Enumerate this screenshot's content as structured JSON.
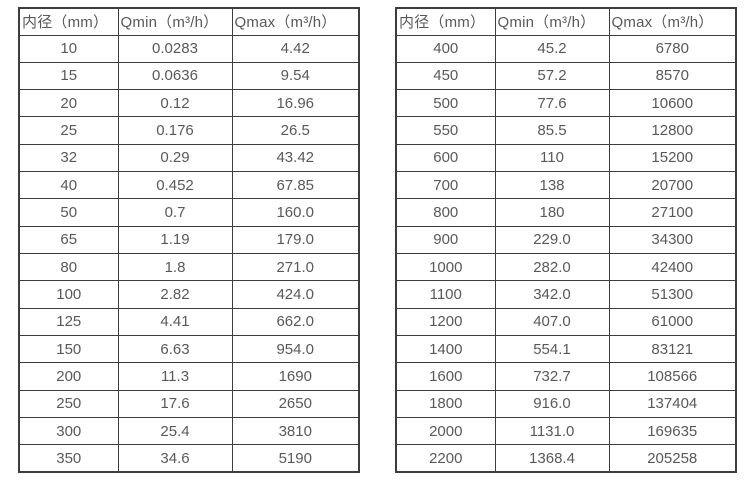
{
  "colors": {
    "background": "#ffffff",
    "border": "#3d3d3d",
    "text": "#595959"
  },
  "tables": [
    {
      "name": "flow-table-small-diameters",
      "headers": [
        "内径（mm）",
        "Qmin（m³/h）",
        "Qmax（m³/h）"
      ],
      "rows": [
        [
          "10",
          "0.0283",
          "4.42"
        ],
        [
          "15",
          "0.0636",
          "9.54"
        ],
        [
          "20",
          "0.12",
          "16.96"
        ],
        [
          "25",
          "0.176",
          "26.5"
        ],
        [
          "32",
          "0.29",
          "43.42"
        ],
        [
          "40",
          "0.452",
          "67.85"
        ],
        [
          "50",
          "0.7",
          "160.0"
        ],
        [
          "65",
          "1.19",
          "179.0"
        ],
        [
          "80",
          "1.8",
          "271.0"
        ],
        [
          "100",
          "2.82",
          "424.0"
        ],
        [
          "125",
          "4.41",
          "662.0"
        ],
        [
          "150",
          "6.63",
          "954.0"
        ],
        [
          "200",
          "11.3",
          "1690"
        ],
        [
          "250",
          "17.6",
          "2650"
        ],
        [
          "300",
          "25.4",
          "3810"
        ],
        [
          "350",
          "34.6",
          "5190"
        ]
      ]
    },
    {
      "name": "flow-table-large-diameters",
      "headers": [
        "内径（mm）",
        "Qmin（m³/h）",
        "Qmax（m³/h）"
      ],
      "rows": [
        [
          "400",
          "45.2",
          "6780"
        ],
        [
          "450",
          "57.2",
          "8570"
        ],
        [
          "500",
          "77.6",
          "10600"
        ],
        [
          "550",
          "85.5",
          "12800"
        ],
        [
          "600",
          "110",
          "15200"
        ],
        [
          "700",
          "138",
          "20700"
        ],
        [
          "800",
          "180",
          "27100"
        ],
        [
          "900",
          "229.0",
          "34300"
        ],
        [
          "1000",
          "282.0",
          "42400"
        ],
        [
          "1100",
          "342.0",
          "51300"
        ],
        [
          "1200",
          "407.0",
          "61000"
        ],
        [
          "1400",
          "554.1",
          "83121"
        ],
        [
          "1600",
          "732.7",
          "108566"
        ],
        [
          "1800",
          "916.0",
          "137404"
        ],
        [
          "2000",
          "1131.0",
          "169635"
        ],
        [
          "2200",
          "1368.4",
          "205258"
        ]
      ]
    }
  ]
}
